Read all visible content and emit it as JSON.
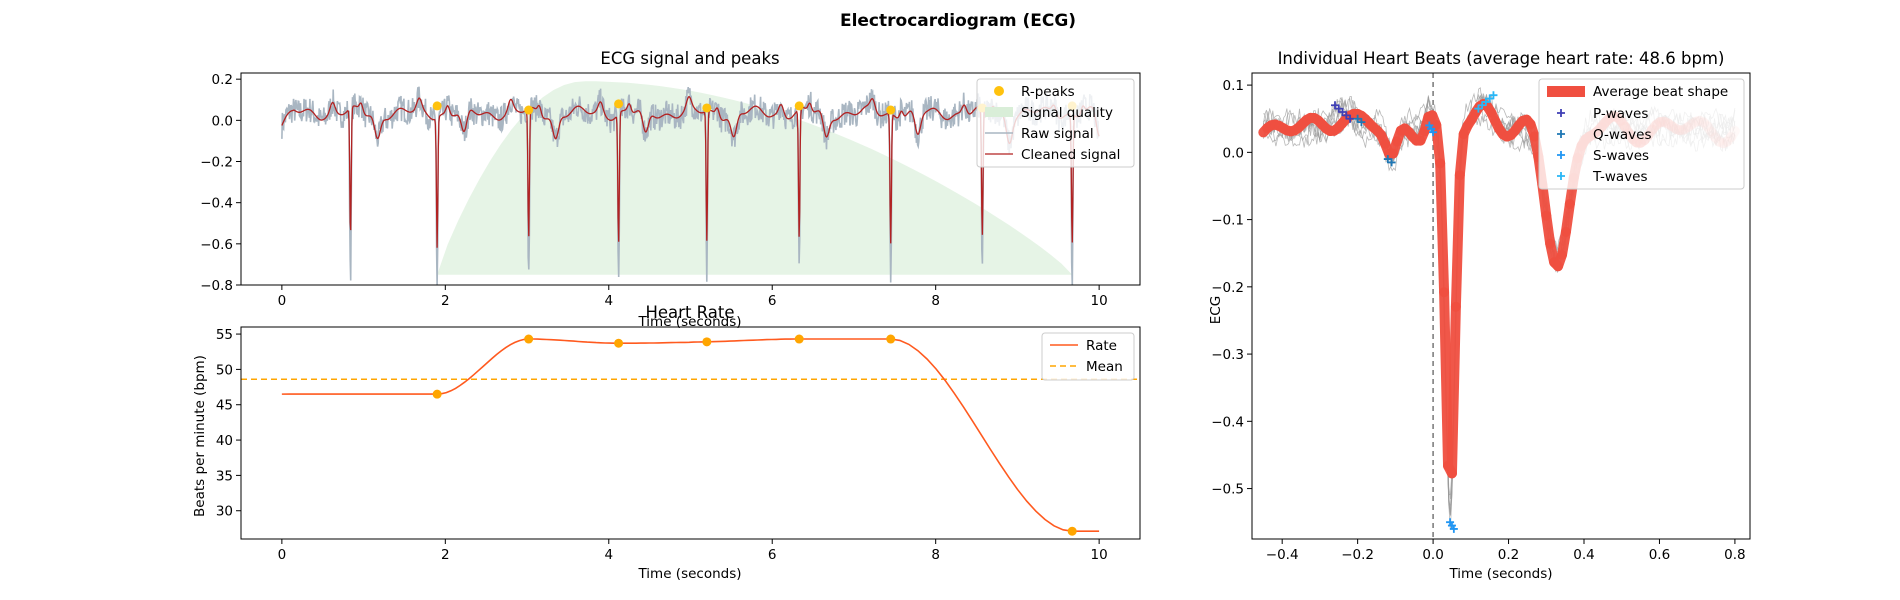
{
  "figure_title": "Electrocardiogram (ECG)",
  "colors": {
    "raw_signal": "#a9b6c2",
    "cleaned_signal": "#b22222",
    "r_peaks": "#ffc20e",
    "signal_quality": "#d9eed8",
    "rate": "#ff5a1f",
    "mean": "#ffa500",
    "average_beat": "#f04f40",
    "p_waves": "#3f3fb5",
    "q_waves": "#1f77b4",
    "s_waves": "#2196f3",
    "t_waves": "#29b6f6"
  },
  "chart_data": [
    {
      "id": "ecg_signal",
      "type": "line",
      "title": "ECG signal and peaks",
      "xlabel": "Time (seconds)",
      "ylabel": "",
      "xlim": [
        -0.5,
        10.5
      ],
      "ylim": [
        -0.8,
        0.23
      ],
      "x_ticks": [
        0,
        2,
        4,
        6,
        8,
        10
      ],
      "y_ticks": [
        0.2,
        0.0,
        -0.2,
        -0.4,
        -0.6,
        -0.8
      ],
      "x_tick_labels": [
        "0",
        "2",
        "4",
        "6",
        "8",
        "10"
      ],
      "y_tick_labels": [
        "0.2",
        "0.0",
        "−0.2",
        "−0.4",
        "−0.6",
        "−0.8"
      ],
      "legend": [
        "R-peaks",
        "Signal quality",
        "Raw signal",
        "Cleaned signal"
      ],
      "legend_position": "top-right",
      "beat_times": [
        0.84,
        1.9,
        3.02,
        4.12,
        5.2,
        6.33,
        7.45,
        8.57,
        9.67
      ],
      "r_peaks": {
        "x": [
          1.9,
          3.02,
          4.12,
          5.2,
          6.33,
          7.45,
          8.57,
          9.67
        ],
        "y": [
          0.07,
          0.05,
          0.08,
          0.06,
          0.07,
          0.05,
          0.06,
          0.07
        ]
      },
      "signal_quality": {
        "x_start": 1.9,
        "x_peak": 3.7,
        "x_end": 9.67,
        "peak": 0.19,
        "base": -0.75
      }
    },
    {
      "id": "heart_rate",
      "type": "line",
      "title": "Heart Rate",
      "xlabel": "Time (seconds)",
      "ylabel": "Beats per minute (bpm)",
      "xlim": [
        -0.5,
        10.5
      ],
      "ylim": [
        26,
        56
      ],
      "x_ticks": [
        0,
        2,
        4,
        6,
        8,
        10
      ],
      "y_ticks": [
        30,
        35,
        40,
        45,
        50,
        55
      ],
      "x_tick_labels": [
        "0",
        "2",
        "4",
        "6",
        "8",
        "10"
      ],
      "y_tick_labels": [
        "30",
        "35",
        "40",
        "45",
        "50",
        "55"
      ],
      "legend": [
        "Rate",
        "Mean"
      ],
      "legend_position": "top-right",
      "rate": {
        "x": [
          0,
          1.9,
          3.02,
          4.12,
          5.2,
          6.33,
          7.45,
          9.67,
          10
        ],
        "y": [
          46.5,
          46.5,
          54.3,
          53.7,
          53.9,
          54.3,
          54.3,
          27.1,
          27.1
        ]
      },
      "rate_points": {
        "x": [
          1.9,
          3.02,
          4.12,
          5.2,
          6.33,
          7.45,
          9.67
        ],
        "y": [
          46.5,
          54.3,
          53.7,
          53.9,
          54.3,
          54.3,
          27.1
        ]
      },
      "mean": 48.6
    },
    {
      "id": "heart_beats",
      "type": "line",
      "title": "Individual Heart Beats (average heart rate: 48.6 bpm)",
      "xlabel": "Time (seconds)",
      "ylabel": "ECG",
      "xlim": [
        -0.48,
        0.84
      ],
      "ylim": [
        -0.575,
        0.118
      ],
      "x_ticks": [
        -0.4,
        -0.2,
        0.0,
        0.2,
        0.4,
        0.6,
        0.8
      ],
      "y_ticks": [
        0.1,
        0.0,
        -0.1,
        -0.2,
        -0.3,
        -0.4,
        -0.5
      ],
      "x_tick_labels": [
        "−0.4",
        "−0.2",
        "0.0",
        "0.2",
        "0.4",
        "0.6",
        "0.8"
      ],
      "y_tick_labels": [
        "0.1",
        "0.0",
        "−0.1",
        "−0.2",
        "−0.3",
        "−0.4",
        "−0.5"
      ],
      "legend": [
        "Average beat shape",
        "P-waves",
        "Q-waves",
        "S-waves",
        "T-waves"
      ],
      "legend_position": "top-right",
      "p_waves": {
        "x": [
          -0.26,
          -0.25,
          -0.24,
          -0.23,
          -0.22
        ],
        "y": [
          0.07,
          0.065,
          0.06,
          0.055,
          0.05
        ]
      },
      "q_waves": {
        "x": [
          -0.2,
          -0.19,
          -0.12,
          -0.11
        ],
        "y": [
          0.05,
          0.045,
          -0.01,
          -0.015
        ]
      },
      "s_waves": {
        "x": [
          -0.01,
          -0.005,
          0.0,
          0.045,
          0.05,
          0.055
        ],
        "y": [
          0.04,
          0.035,
          0.03,
          -0.55,
          -0.555,
          -0.56
        ]
      },
      "t_waves": {
        "x": [
          0.12,
          0.13,
          0.14,
          0.15,
          0.16
        ],
        "y": [
          0.065,
          0.07,
          0.075,
          0.08,
          0.085
        ]
      }
    }
  ]
}
